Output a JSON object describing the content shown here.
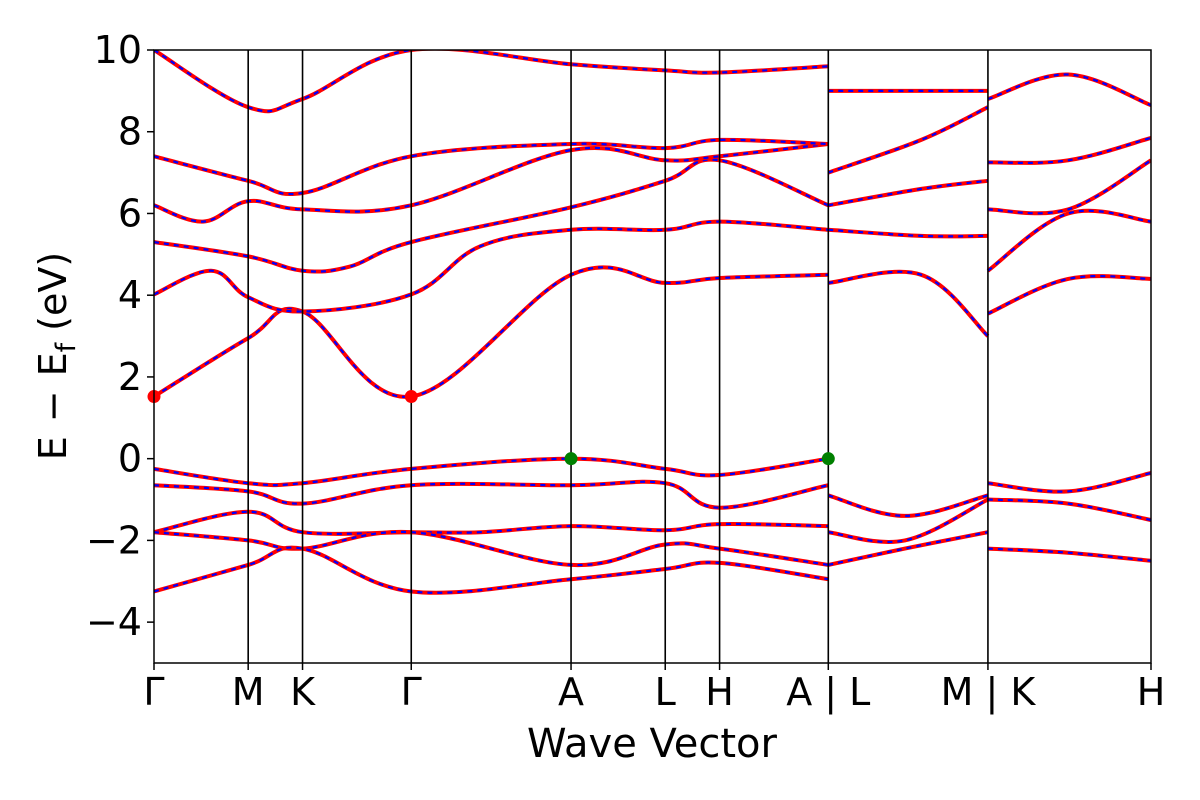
{
  "chart_data": {
    "type": "line",
    "xlabel": "Wave Vector",
    "ylabel_parts": [
      "E",
      "−",
      "E",
      "f",
      "(eV)"
    ],
    "ylim": [
      -5,
      10
    ],
    "yticks": [
      -4,
      -2,
      0,
      2,
      4,
      6,
      8,
      10
    ],
    "ytick_labels": [
      "−4",
      "−2",
      "0",
      "2",
      "4",
      "6",
      "8",
      "10"
    ],
    "grid": false,
    "kpath": {
      "labels": [
        "Γ",
        "M",
        "K",
        "Γ",
        "A",
        "L",
        "H",
        "A | L",
        "M | K",
        "H"
      ],
      "positions": [
        0,
        0.577,
        0.91,
        1.576,
        2.555,
        3.132,
        3.465,
        4.131,
        5.109,
        6.108
      ],
      "range": [
        0,
        6.108
      ]
    },
    "band_colors": {
      "line": "#ff0000",
      "overlay": "#0000ff"
    },
    "markers": [
      {
        "label": "CBM",
        "k": 0,
        "E": 1.52,
        "color": "#ff0000"
      },
      {
        "label": "CBM",
        "k": 1.576,
        "E": 1.52,
        "color": "#ff0000"
      },
      {
        "label": "VBM",
        "k": 2.555,
        "E": 0.0,
        "color": "#008000"
      },
      {
        "label": "VBM",
        "k": 4.131,
        "E": 0.0,
        "color": "#008000"
      }
    ],
    "series": [
      {
        "k": [
          0,
          0.577,
          0.91,
          1.576,
          2.555,
          3.132,
          3.465,
          4.131
        ],
        "E": [
          1.52,
          2.95,
          3.6,
          1.52,
          4.5,
          4.3,
          4.42,
          4.5
        ]
      },
      {
        "k": [
          0,
          0.35,
          0.577,
          0.91,
          1.576,
          2.0,
          2.555,
          3.132,
          3.465,
          4.131
        ],
        "E": [
          4.02,
          4.6,
          3.95,
          3.6,
          4.02,
          5.2,
          5.6,
          5.6,
          5.8,
          5.6
        ]
      },
      {
        "k": [
          0,
          0.577,
          0.91,
          1.2,
          1.576,
          2.555,
          3.132,
          3.465,
          4.131
        ],
        "E": [
          5.3,
          4.95,
          4.6,
          4.7,
          5.3,
          6.15,
          6.8,
          7.3,
          6.2
        ]
      },
      {
        "k": [
          0,
          0.3,
          0.577,
          0.91,
          1.576,
          2.555,
          3.132,
          3.465,
          4.131
        ],
        "E": [
          6.2,
          5.8,
          6.3,
          6.1,
          6.2,
          7.55,
          7.3,
          7.4,
          7.7
        ]
      },
      {
        "k": [
          0,
          0.577,
          0.91,
          1.576,
          2.555,
          3.132,
          3.465,
          4.131
        ],
        "E": [
          7.4,
          6.8,
          6.5,
          7.4,
          7.7,
          7.6,
          7.8,
          7.7
        ]
      },
      {
        "k": [
          0,
          0.577,
          0.91,
          1.576,
          2.555,
          3.132,
          3.465,
          4.131
        ],
        "E": [
          10.0,
          8.6,
          8.8,
          10.0,
          9.65,
          9.5,
          9.45,
          9.6
        ]
      },
      {
        "k": [
          0,
          0.577,
          0.91,
          1.576,
          2.555,
          3.132,
          3.465,
          4.131
        ],
        "E": [
          -0.25,
          -0.6,
          -0.6,
          -0.25,
          0.0,
          -0.25,
          -0.4,
          0.0
        ]
      },
      {
        "k": [
          0,
          0.577,
          0.91,
          1.576,
          2.555,
          3.132,
          3.465,
          4.131
        ],
        "E": [
          -0.65,
          -0.8,
          -1.1,
          -0.65,
          -0.65,
          -0.6,
          -1.2,
          -0.65
        ]
      },
      {
        "k": [
          0,
          0.577,
          0.91,
          1.576,
          2.0,
          2.555,
          3.132,
          3.465,
          4.131
        ],
        "E": [
          -1.8,
          -1.3,
          -1.8,
          -1.8,
          -1.8,
          -1.65,
          -1.75,
          -1.6,
          -1.65
        ]
      },
      {
        "k": [
          0,
          0.577,
          0.91,
          1.576,
          2.555,
          3.132,
          3.465,
          4.131
        ],
        "E": [
          -1.8,
          -2.0,
          -2.2,
          -1.8,
          -2.6,
          -2.1,
          -2.2,
          -2.6
        ]
      },
      {
        "k": [
          0,
          0.577,
          0.91,
          1.576,
          2.555,
          3.132,
          3.465,
          4.131
        ],
        "E": [
          -3.25,
          -2.6,
          -2.2,
          -3.25,
          -2.95,
          -2.7,
          -2.55,
          -2.95
        ]
      },
      {
        "k": [
          4.131,
          4.6,
          5.109
        ],
        "E": [
          -0.9,
          -1.4,
          -0.9
        ]
      },
      {
        "k": [
          4.131,
          4.6,
          5.109
        ],
        "E": [
          -1.8,
          -2.0,
          -1.0
        ]
      },
      {
        "k": [
          4.131,
          4.6,
          5.109
        ],
        "E": [
          -2.6,
          -2.2,
          -1.8
        ]
      },
      {
        "k": [
          4.131,
          4.7,
          5.109
        ],
        "E": [
          4.3,
          4.5,
          3.0
        ]
      },
      {
        "k": [
          4.131,
          4.7,
          5.109
        ],
        "E": [
          5.6,
          5.45,
          5.45
        ]
      },
      {
        "k": [
          4.131,
          4.7,
          5.109
        ],
        "E": [
          6.2,
          6.6,
          6.8
        ]
      },
      {
        "k": [
          4.131,
          4.7,
          5.109
        ],
        "E": [
          7.0,
          7.8,
          8.6
        ]
      },
      {
        "k": [
          4.131,
          4.7,
          5.109
        ],
        "E": [
          9.0,
          9.0,
          9.0
        ]
      },
      {
        "k": [
          5.109,
          5.6,
          6.108
        ],
        "E": [
          -0.6,
          -0.8,
          -0.35
        ]
      },
      {
        "k": [
          5.109,
          5.6,
          6.108
        ],
        "E": [
          -1.0,
          -1.1,
          -1.5
        ]
      },
      {
        "k": [
          5.109,
          5.6,
          6.108
        ],
        "E": [
          -2.2,
          -2.3,
          -2.5
        ]
      },
      {
        "k": [
          5.109,
          5.6,
          6.108
        ],
        "E": [
          3.55,
          4.4,
          4.4
        ]
      },
      {
        "k": [
          5.109,
          5.6,
          6.108
        ],
        "E": [
          4.6,
          6.0,
          5.8
        ]
      },
      {
        "k": [
          5.109,
          5.6,
          6.108
        ],
        "E": [
          6.1,
          6.1,
          7.3
        ]
      },
      {
        "k": [
          5.109,
          5.6,
          6.108
        ],
        "E": [
          7.25,
          7.3,
          7.85
        ]
      },
      {
        "k": [
          5.109,
          5.6,
          6.108
        ],
        "E": [
          8.8,
          9.4,
          8.65
        ]
      }
    ]
  }
}
